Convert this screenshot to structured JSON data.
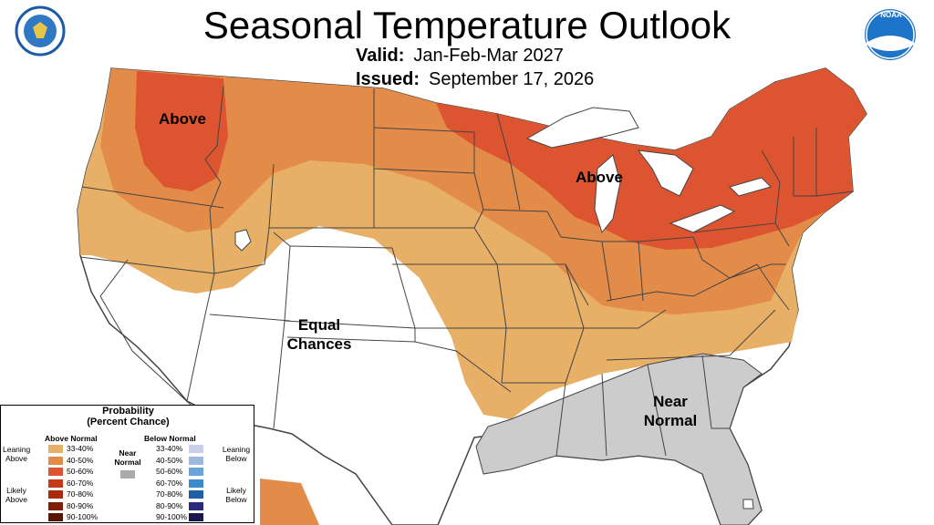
{
  "title": "Seasonal Temperature Outlook",
  "valid_label": "Valid:",
  "valid_value": "Jan-Feb-Mar 2027",
  "issued_label": "Issued:",
  "issued_value": "September 17, 2026",
  "map_labels": {
    "above_west": "Above",
    "above_east": "Above",
    "equal_1": "Equal",
    "equal_2": "Chances",
    "near_1": "Near",
    "near_2": "Normal"
  },
  "logos": {
    "noaa_text": "NOAA"
  },
  "colors": {
    "above_33_40": "#e8b066",
    "above_40_50": "#e38c49",
    "above_50_60": "#dc5530",
    "above_60_70": "#c43a17",
    "above_70_80": "#a92a0c",
    "above_80_90": "#7d1f08",
    "above_90_100": "#5a1404",
    "near_normal": "#cccccc",
    "below_33_40": "#c7d0e8",
    "below_40_50": "#9fb8de",
    "below_50_60": "#6aa4d8",
    "below_60_70": "#3b8acb",
    "below_70_80": "#1f5fa6",
    "below_80_90": "#2a2a7a",
    "below_90_100": "#1a1650"
  },
  "legend": {
    "title_1": "Probability",
    "title_2": "(Percent Chance)",
    "above_header": "Above Normal",
    "below_header": "Below Normal",
    "near_1": "Near",
    "near_2": "Normal",
    "leaning_above_1": "Leaning",
    "leaning_above_2": "Above",
    "likely_above_1": "Likely",
    "likely_above_2": "Above",
    "leaning_below_1": "Leaning",
    "leaning_below_2": "Below",
    "likely_below_1": "Likely",
    "likely_below_2": "Below",
    "ranges": [
      "33-40%",
      "40-50%",
      "50-60%",
      "60-70%",
      "70-80%",
      "80-90%",
      "90-100%"
    ]
  }
}
